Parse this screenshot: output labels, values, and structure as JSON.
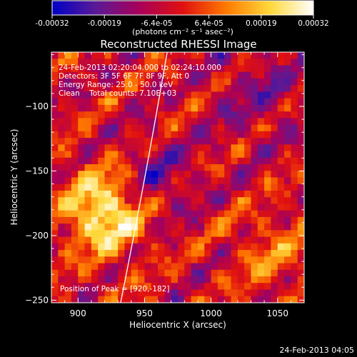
{
  "colorbar": {
    "ticks": [
      "-0.00032",
      "-0.00019",
      "-6.4e-05",
      "6.4e-05",
      "0.00019",
      "0.00032"
    ],
    "unit_label": "(photons cm⁻² s⁻¹ asec⁻²)",
    "range": [
      -0.00032,
      0.00032
    ],
    "gradient": [
      "#0000c8",
      "#5a1a96",
      "#a8005a",
      "#e01010",
      "#ff7a00",
      "#ffd83a",
      "#ffffff"
    ]
  },
  "footer": {
    "timestamp": "24-Feb-2013 04:05"
  },
  "chart_data": {
    "type": "heatmap",
    "title": "Reconstructed RHESSI Image",
    "xlabel": "Heliocentric X (arcsec)",
    "ylabel": "Heliocentric Y (arcsec)",
    "xlim": [
      880,
      1070
    ],
    "ylim": [
      -252,
      -58
    ],
    "x_ticks": [
      900,
      950,
      1000,
      1050
    ],
    "y_ticks": [
      -100,
      -150,
      -200,
      -250
    ],
    "x_tick_labels": [
      "900",
      "950",
      "1000",
      "1050"
    ],
    "y_tick_labels": [
      "−100",
      "−150",
      "−200",
      "−250"
    ],
    "annotations": [
      "24-Feb-2013 02:20:04.000 to 02:24:10.000",
      "Detectors: 3F 5F 6F 7F 8F 9F, Att 0",
      "Energy Range: 25.0 - 50.0 keV",
      "Clean    Total counts: 7.10E+03"
    ],
    "peak_label": "Position of Peak = [920,-182]",
    "peak": {
      "x": 920,
      "y": -182
    },
    "limb_curve": [
      [
        932,
        -252
      ],
      [
        950,
        -160
      ],
      [
        967,
        -58
      ]
    ]
  }
}
